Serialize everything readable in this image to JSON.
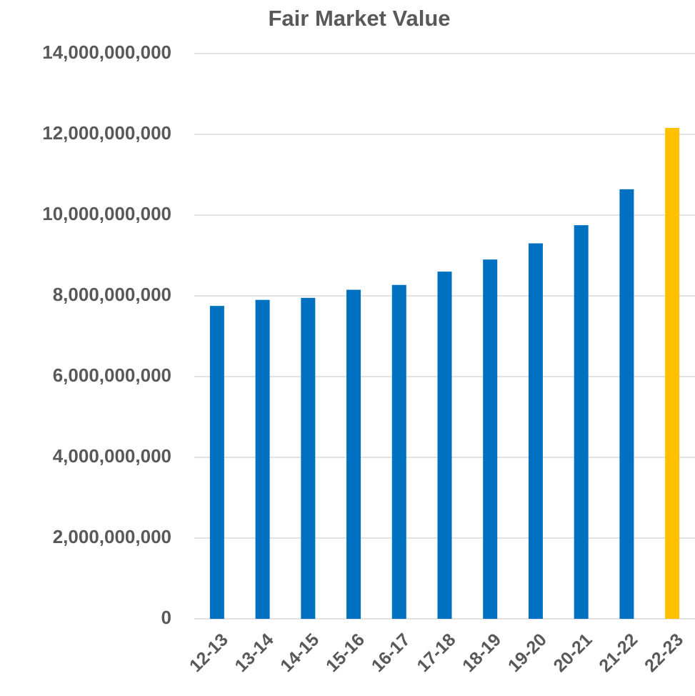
{
  "chart_data": {
    "type": "bar",
    "title": "Fair Market Value",
    "categories": [
      "12-13",
      "13-14",
      "14-15",
      "15-16",
      "16-17",
      "17-18",
      "18-19",
      "19-20",
      "20-21",
      "21-22",
      "22-23"
    ],
    "values": [
      7750000000,
      7900000000,
      7950000000,
      8150000000,
      8270000000,
      8600000000,
      8900000000,
      9300000000,
      9750000000,
      10640000000,
      12160000000
    ],
    "colors": [
      "#0070c0",
      "#0070c0",
      "#0070c0",
      "#0070c0",
      "#0070c0",
      "#0070c0",
      "#0070c0",
      "#0070c0",
      "#0070c0",
      "#0070c0",
      "#ffc000"
    ],
    "ylim": [
      0,
      14000000000
    ],
    "yticks": [
      0,
      {
        "value": 2000000000,
        "label": "2,000,000,000"
      },
      {
        "value": 4000000000,
        "label": "4,000,000,000"
      },
      {
        "value": 6000000000,
        "label": "6,000,000,000"
      },
      {
        "value": 8000000000,
        "label": "8,000,000,000"
      },
      {
        "value": 10000000000,
        "label": "10,000,000,000"
      },
      {
        "value": 12000000000,
        "label": "12,000,000,000"
      },
      {
        "value": 14000000000,
        "label": "14,000,000,000"
      }
    ],
    "grid": true
  }
}
